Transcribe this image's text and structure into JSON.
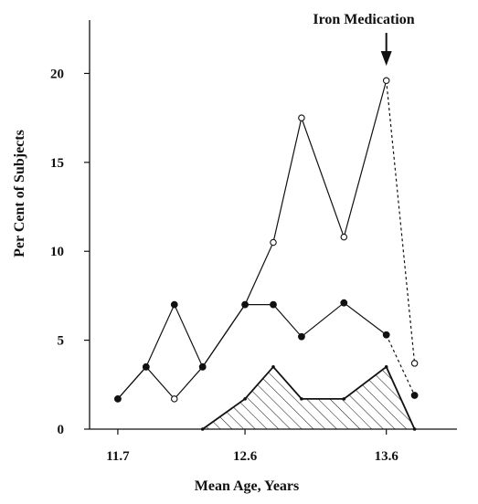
{
  "chart_data": {
    "type": "line",
    "title": "",
    "xlabel": "Mean Age, Years",
    "ylabel": "Per Cent of Subjects",
    "xlim": [
      11.5,
      14.1
    ],
    "ylim": [
      0,
      23
    ],
    "x_ticks": [
      11.7,
      12.6,
      13.6
    ],
    "x_tick_labels": [
      "11.7",
      "12.6",
      "13.6"
    ],
    "y_ticks": [
      0,
      5,
      10,
      15,
      20
    ],
    "y_tick_labels": [
      "0",
      "5",
      "10",
      "15",
      "20"
    ],
    "grid": false,
    "legend": "none",
    "annotation": {
      "text": "Iron Medication",
      "x": 13.6
    },
    "series": [
      {
        "marker": "open-circle",
        "line": "solid",
        "points": [
          [
            11.7,
            1.7
          ],
          [
            11.9,
            3.5
          ],
          [
            12.1,
            1.7
          ],
          [
            12.3,
            3.5
          ],
          [
            12.6,
            7.0
          ],
          [
            12.8,
            10.5
          ],
          [
            13.0,
            17.5
          ],
          [
            13.3,
            10.8
          ],
          [
            13.6,
            19.6
          ]
        ]
      },
      {
        "marker": "open-circle",
        "line": "dashed",
        "points": [
          [
            13.6,
            19.6
          ],
          [
            13.8,
            3.7
          ]
        ]
      },
      {
        "marker": "filled-circle",
        "line": "solid",
        "points": [
          [
            11.7,
            1.7
          ],
          [
            11.9,
            3.5
          ],
          [
            12.1,
            7.0
          ],
          [
            12.3,
            3.5
          ],
          [
            12.6,
            7.0
          ],
          [
            12.8,
            7.0
          ],
          [
            13.0,
            5.2
          ],
          [
            13.3,
            7.1
          ],
          [
            13.6,
            5.3
          ]
        ]
      },
      {
        "marker": "filled-circle",
        "line": "dashed",
        "points": [
          [
            13.6,
            5.3
          ],
          [
            13.8,
            1.9
          ]
        ]
      },
      {
        "marker": "small-dot",
        "line": "solid",
        "fill": "hatched",
        "points": [
          [
            12.3,
            0
          ],
          [
            12.6,
            1.7
          ],
          [
            12.8,
            3.5
          ],
          [
            13.0,
            1.7
          ],
          [
            13.3,
            1.7
          ],
          [
            13.6,
            3.5
          ],
          [
            13.8,
            0
          ]
        ]
      }
    ]
  }
}
